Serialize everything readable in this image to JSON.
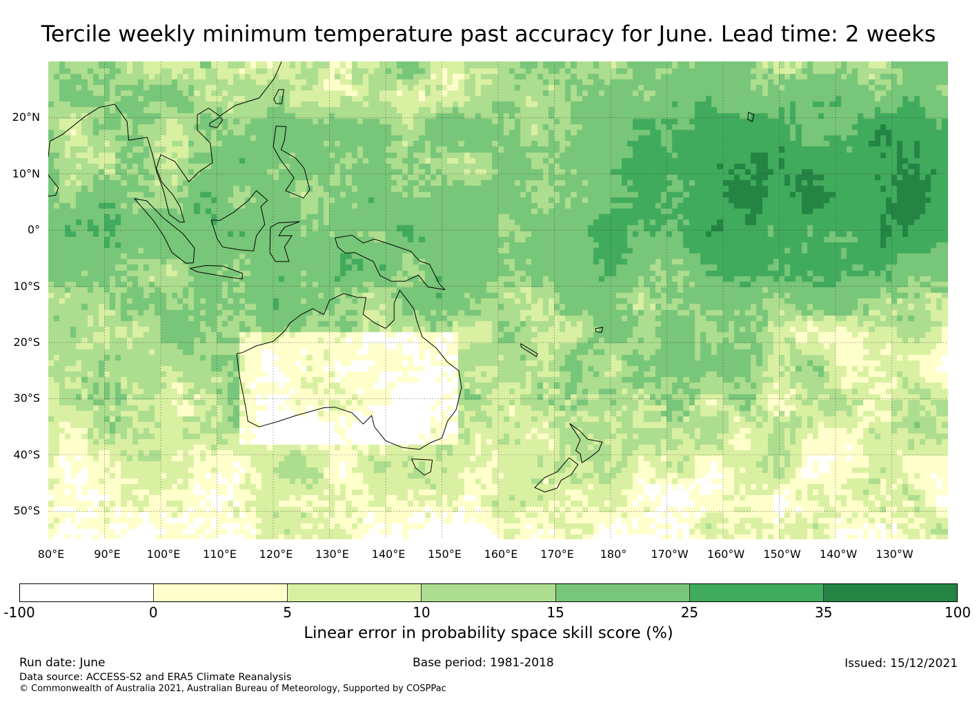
{
  "title": "Tercile weekly minimum temperature past accuracy for June. Lead time: 2 weeks",
  "map": {
    "lat_labels": [
      "20°N",
      "10°N",
      "0°",
      "10°S",
      "20°S",
      "30°S",
      "40°S",
      "50°S"
    ],
    "lon_labels": [
      "80°E",
      "90°E",
      "100°E",
      "110°E",
      "120°E",
      "130°E",
      "140°E",
      "150°E",
      "160°E",
      "170°E",
      "180°",
      "170°W",
      "160°W",
      "150°W",
      "140°W",
      "130°W"
    ],
    "extent": {
      "lon_min": 80,
      "lon_max": 240,
      "lat_min": -55,
      "lat_max": 30
    },
    "gridlines": true
  },
  "colorbar": {
    "ticks": [
      "-100",
      "0",
      "5",
      "10",
      "15",
      "25",
      "35",
      "100"
    ],
    "colors": [
      "#ffffff",
      "#ffffcc",
      "#d9f0a3",
      "#addd8e",
      "#78c679",
      "#41ab5d",
      "#238443"
    ],
    "label": "Linear error in probability space skill score (%)"
  },
  "footer": {
    "run_date": "Run date: June",
    "base_period": "Base period: 1981-2018",
    "issued": "Issued: 15/12/2021",
    "data_source": "Data source: ACCESS-S2 and ERA5 Climate Reanalysis",
    "copyright": "© Commonwealth of Australia 2021, Australian Bureau of Meteorology, Supported by COSPPac"
  }
}
